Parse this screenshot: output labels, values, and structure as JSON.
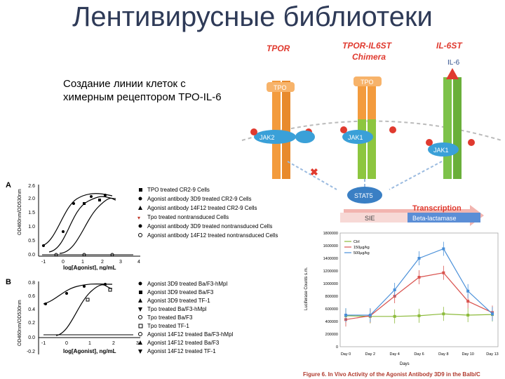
{
  "slide": {
    "title": "Лентивирусные библиотеки",
    "subtitle": "Создание линии клеток с химерным рецептором ТРО-IL-6"
  },
  "diagram": {
    "receptor_labels": [
      "TPOR",
      "TPOR-IL6ST",
      "Chimera",
      "IL-6ST"
    ],
    "ligands": [
      "TPO",
      "TPO",
      "IL-6"
    ],
    "kinases": [
      "JAK2",
      "JAK1",
      "JAK1"
    ],
    "stat": "STAT5",
    "transcription": "Transcription",
    "sie": "SIE",
    "reporter": "Beta-lactamase",
    "colors": {
      "tpor": "#f39b3d",
      "chimera": "#8dc63f",
      "il6st": "#7dc24a",
      "jak": "#3aa0d8",
      "red": "#e03a2f"
    }
  },
  "panel_a": {
    "letter": "A",
    "ylabel": "OD460nm/OD530nm",
    "xlabel": "log[Agonist], ng/mL",
    "yticks": [
      "2.6",
      "2.0",
      "1.5",
      "1.0",
      "0.5",
      "0.0"
    ],
    "xticks": [
      "-1",
      "0",
      "1",
      "2",
      "3",
      "4"
    ],
    "legend": [
      "TPO treated CR2-9 Cells",
      "Agonist antibody 3D9 treated CR2-9 Cells",
      "Agonist antibody 14F12 treated CR2-9 Cells",
      "Tpo treated nontransduced Cells",
      "Agonist antibody 3D9 treated nontransduced Cells",
      "Agonist antibody 14F12 treated nontransduced Cells"
    ]
  },
  "panel_b": {
    "letter": "B",
    "ylabel": "OD460nm/OD530nm",
    "xlabel": "log[Agonist], ng/mL",
    "yticks": [
      "0.8",
      "0.6",
      "0.4",
      "0.2",
      "0.0",
      "-0.2"
    ],
    "xticks": [
      "-1",
      "0",
      "1",
      "2",
      "3"
    ],
    "legend": [
      "Agonist 3D9 treated Ba/F3-hMpl",
      "Agonist 3D9 treated Ba/F3",
      "Agonist 3D9 treated TF-1",
      "Tpo treated Ba/F3-hMpl",
      "Tpo treated Ba/F3",
      "Tpo treated TF-1",
      "Agonist 14F12 treated Ba/F3-hMpl",
      "Agonist 14F12 treated Ba/F3",
      "Agonist 14F12 treated TF-1"
    ]
  },
  "chart_data": {
    "type": "line",
    "ylabel": "Luciferase Counts s.m.",
    "xlabel": "Days",
    "categories": [
      "Day 0",
      "Day 2",
      "Day 4",
      "Day 6",
      "Day 8",
      "Day 10",
      "Day 13"
    ],
    "ylim": [
      0,
      1800000
    ],
    "yticks": [
      "1800000",
      "1600000",
      "1400000",
      "1200000",
      "1000000",
      "800000",
      "600000",
      "400000",
      "200000",
      "0"
    ],
    "series": [
      {
        "name": "Ctrl",
        "color": "#8dbb3c",
        "values": [
          490000,
          480000,
          480000,
          490000,
          520000,
          500000,
          510000
        ]
      },
      {
        "name": "150µg/kg",
        "color": "#d9534f",
        "values": [
          430000,
          490000,
          800000,
          1100000,
          1170000,
          720000,
          540000
        ]
      },
      {
        "name": "500µg/kg",
        "color": "#4a90d9",
        "values": [
          500000,
          500000,
          900000,
          1400000,
          1550000,
          880000,
          520000
        ]
      }
    ],
    "caption": "Figure 6. In Vivo Activity of the Agonist Antibody 3D9 in the Balb/C"
  }
}
